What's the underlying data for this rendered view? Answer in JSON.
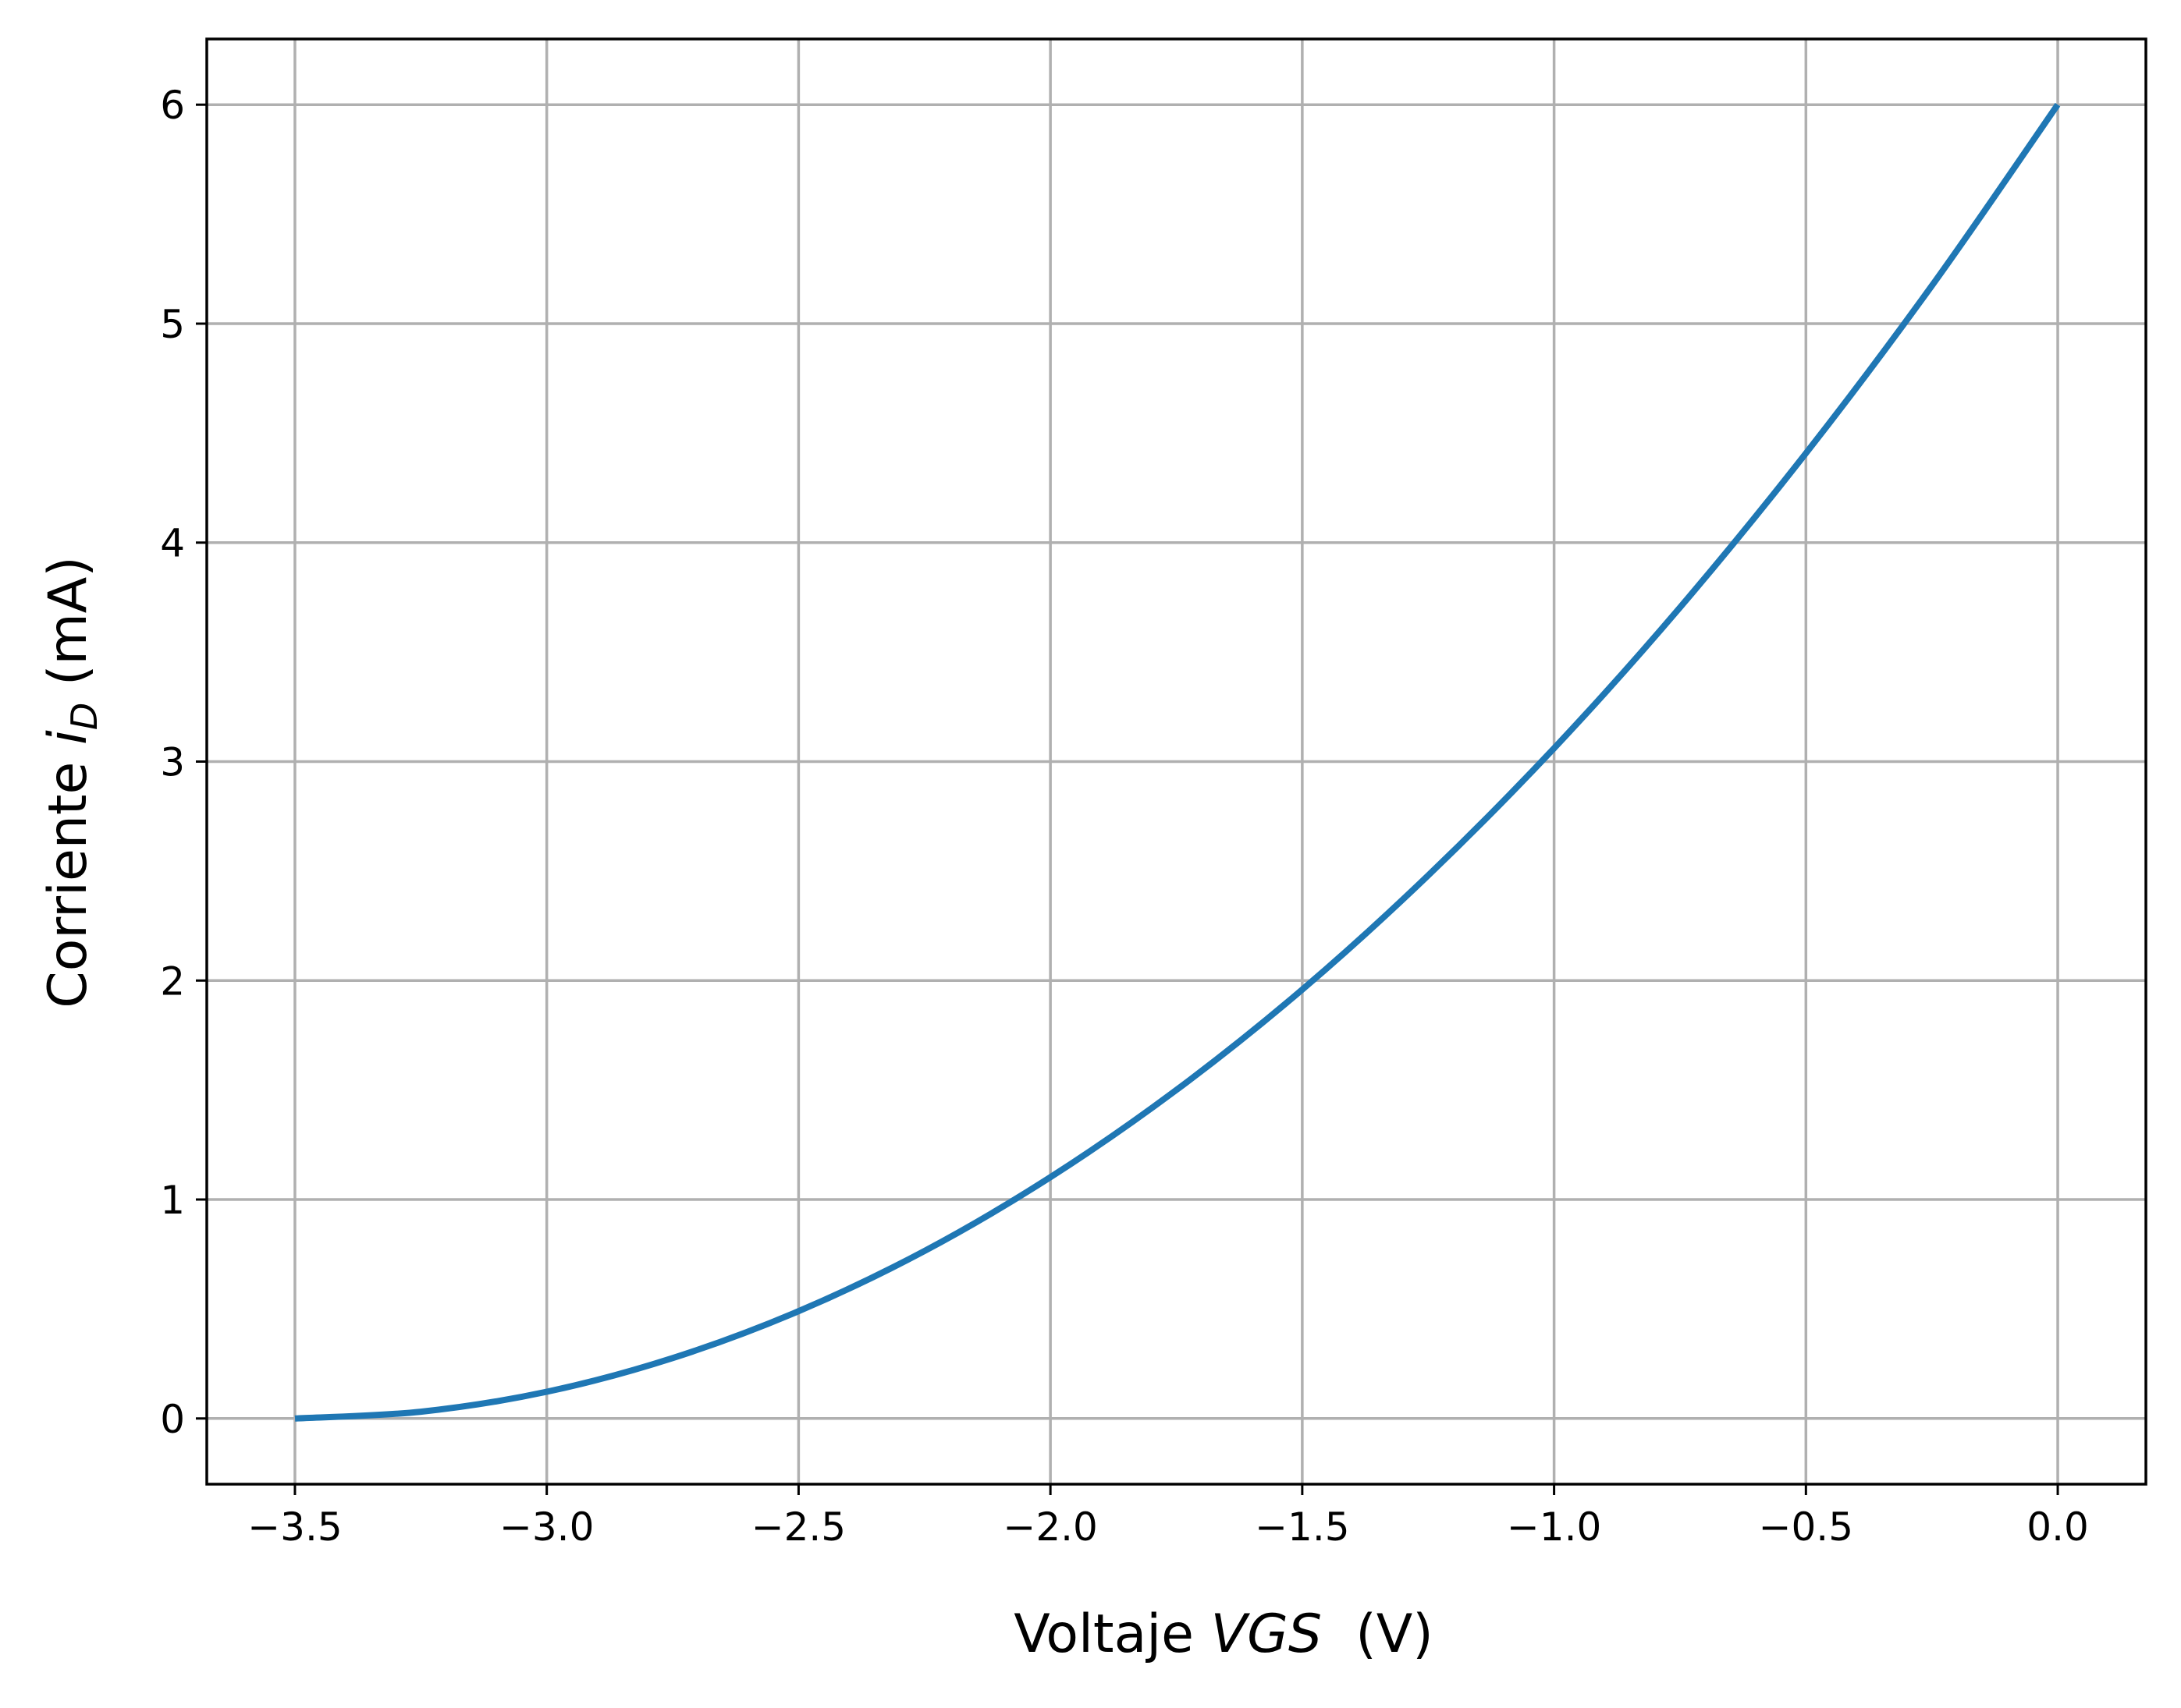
{
  "chart_data": {
    "type": "line",
    "title": "",
    "xlabel": {
      "prefix": "Voltaje ",
      "italic": "VGS",
      "suffix": "  (V)"
    },
    "ylabel": {
      "prefix": "Corriente ",
      "italic": "i",
      "subscript": "D",
      "suffix": " (mA)"
    },
    "xlim": [
      -3.675,
      0.175
    ],
    "ylim": [
      -0.3,
      6.3
    ],
    "x_ticks": [
      -3.5,
      -3.0,
      -2.5,
      -2.0,
      -1.5,
      -1.0,
      -0.5,
      0.0
    ],
    "x_tick_labels": [
      "−3.5",
      "−3.0",
      "−2.5",
      "−2.0",
      "−1.5",
      "−1.0",
      "−0.5",
      "0.0"
    ],
    "y_ticks": [
      0,
      1,
      2,
      3,
      4,
      5,
      6
    ],
    "y_tick_labels": [
      "0",
      "1",
      "2",
      "3",
      "4",
      "5",
      "6"
    ],
    "grid": true,
    "series": [
      {
        "color": "#1f77b4",
        "x": [
          -3.5,
          -3.25,
          -3.0,
          -2.75,
          -2.5,
          -2.25,
          -2.0,
          -1.75,
          -1.5,
          -1.25,
          -1.0,
          -0.75,
          -0.5,
          -0.25,
          0.0
        ],
        "y": [
          0.0,
          0.031,
          0.122,
          0.276,
          0.49,
          0.765,
          1.102,
          1.5,
          1.959,
          2.48,
          3.061,
          3.704,
          4.408,
          5.173,
          6.0
        ]
      }
    ]
  }
}
